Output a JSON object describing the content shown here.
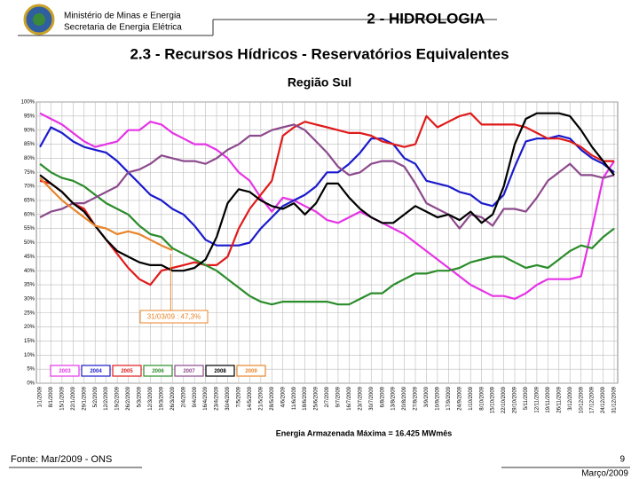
{
  "header": {
    "ministry": "Ministério de Minas e Energia",
    "secretariat": "Secretaria de Energia Elétrica",
    "section": "2 - HIDROLOGIA"
  },
  "subtitle": "2.3 - Recursos Hídricos - Reservatórios Equivalentes",
  "chart_data": {
    "type": "line",
    "title": "Região Sul",
    "x_label": "Energia Armazenada Máxima = 16.425 MWmês",
    "annotation": "31/03/09 : 47,3%",
    "categories": [
      "1/1/2009",
      "8/1/2009",
      "15/1/2009",
      "22/1/2009",
      "29/1/2009",
      "5/2/2009",
      "12/2/2009",
      "19/2/2009",
      "26/2/2009",
      "5/3/2009",
      "12/3/2009",
      "19/3/2009",
      "26/3/2009",
      "2/4/2009",
      "9/4/2009",
      "16/4/2009",
      "23/4/2009",
      "30/4/2009",
      "7/5/2009",
      "14/5/2009",
      "21/5/2009",
      "28/5/2009",
      "4/6/2009",
      "11/6/2009",
      "18/6/2009",
      "25/6/2009",
      "2/7/2009",
      "9/7/2009",
      "16/7/2009",
      "23/7/2009",
      "30/7/2009",
      "6/8/2009",
      "13/8/2009",
      "20/8/2009",
      "27/8/2009",
      "3/9/2009",
      "10/9/2009",
      "17/9/2009",
      "24/9/2009",
      "1/10/2009",
      "8/10/2009",
      "15/10/2009",
      "22/10/2009",
      "29/10/2009",
      "5/11/2009",
      "12/11/2009",
      "19/11/2009",
      "26/11/2009",
      "3/12/2009",
      "10/12/2009",
      "17/12/2009",
      "24/12/2009",
      "31/12/2009"
    ],
    "series": [
      {
        "name": "2003",
        "color": "#e633e6",
        "values": [
          96,
          94,
          92,
          89,
          86,
          84,
          85,
          86,
          90,
          90,
          93,
          92,
          89,
          87,
          85,
          85,
          83,
          80,
          75,
          72,
          66,
          61,
          66,
          65,
          63,
          61,
          58,
          57,
          59,
          61,
          59,
          57,
          55,
          53,
          50,
          47,
          44,
          41,
          38,
          35,
          33,
          31,
          31,
          30,
          32,
          35,
          37,
          37,
          37,
          38,
          55,
          73,
          79
        ]
      },
      {
        "name": "2004",
        "color": "#1a1acc",
        "values": [
          84,
          91,
          89,
          86,
          84,
          83,
          82,
          79,
          75,
          71,
          67,
          65,
          62,
          60,
          56,
          51,
          49,
          49,
          49,
          50,
          55,
          59,
          63,
          65,
          67,
          70,
          75,
          75,
          78,
          82,
          87,
          87,
          85,
          80,
          78,
          72,
          71,
          70,
          68,
          67,
          64,
          63,
          67,
          77,
          86,
          87,
          87,
          88,
          87,
          83,
          80,
          78,
          75
        ]
      },
      {
        "name": "2005",
        "color": "#e01a1a",
        "values": [
          72,
          71,
          68,
          64,
          62,
          56,
          51,
          46,
          41,
          37,
          35,
          40,
          41,
          42,
          43,
          42,
          42,
          45,
          55,
          62,
          67,
          72,
          88,
          91,
          93,
          92,
          91,
          90,
          89,
          89,
          88,
          86,
          85,
          84,
          85,
          95,
          91,
          93,
          95,
          96,
          92,
          92,
          92,
          92,
          91,
          89,
          87,
          87,
          86,
          84,
          81,
          79,
          79
        ]
      },
      {
        "name": "2006",
        "color": "#2a8c2a",
        "values": [
          78,
          75,
          73,
          72,
          70,
          67,
          64,
          62,
          60,
          56,
          53,
          52,
          48,
          46,
          44,
          42,
          40,
          37,
          34,
          31,
          29,
          28,
          29,
          29,
          29,
          29,
          29,
          28,
          28,
          30,
          32,
          32,
          35,
          37,
          39,
          39,
          40,
          40,
          41,
          43,
          44,
          45,
          45,
          43,
          41,
          42,
          41,
          44,
          47,
          49,
          48,
          52,
          55
        ]
      },
      {
        "name": "2007",
        "color": "#8c4a8c",
        "values": [
          59,
          61,
          62,
          64,
          64,
          66,
          68,
          70,
          75,
          76,
          78,
          81,
          80,
          79,
          79,
          78,
          80,
          83,
          85,
          88,
          88,
          90,
          91,
          92,
          90,
          86,
          82,
          77,
          74,
          75,
          78,
          79,
          79,
          77,
          71,
          64,
          62,
          60,
          55,
          60,
          59,
          56,
          62,
          62,
          61,
          66,
          72,
          75,
          78,
          74,
          74,
          73,
          74
        ]
      },
      {
        "name": "2008",
        "color": "#000000",
        "values": [
          74,
          71,
          68,
          64,
          61,
          56,
          51,
          47,
          45,
          43,
          42,
          42,
          40,
          40,
          41,
          44,
          52,
          64,
          69,
          68,
          65,
          63,
          62,
          64,
          60,
          64,
          71,
          71,
          66,
          62,
          59,
          57,
          57,
          60,
          63,
          61,
          59,
          60,
          58,
          61,
          57,
          60,
          70,
          85,
          94,
          96,
          96,
          96,
          95,
          90,
          84,
          79,
          74
        ]
      },
      {
        "name": "2009",
        "color": "#e8862a",
        "values": [
          73,
          69,
          65,
          62,
          59,
          56,
          55,
          53,
          54,
          53,
          51,
          49,
          47.3,
          null,
          null,
          null,
          null,
          null,
          null,
          null,
          null,
          null,
          null,
          null,
          null,
          null,
          null,
          null,
          null,
          null,
          null,
          null,
          null,
          null,
          null,
          null,
          null,
          null,
          null,
          null,
          null,
          null,
          null,
          null,
          null,
          null,
          null,
          null,
          null,
          null,
          null,
          null,
          null
        ]
      }
    ],
    "ylim": [
      0,
      100
    ],
    "yticks": [
      {
        "value": 0,
        "label": "0%"
      },
      {
        "value": 5,
        "label": "5%"
      },
      {
        "value": 10,
        "label": "10%"
      },
      {
        "value": 15,
        "label": "15%"
      },
      {
        "value": 20,
        "label": "20%"
      },
      {
        "value": 25,
        "label": "25%"
      },
      {
        "value": 30,
        "label": "30%"
      },
      {
        "value": 35,
        "label": "35%"
      },
      {
        "value": 40,
        "label": "40%"
      },
      {
        "value": 45,
        "label": "45%"
      },
      {
        "value": 50,
        "label": "50%"
      },
      {
        "value": 55,
        "label": "55%"
      },
      {
        "value": 60,
        "label": "60%"
      },
      {
        "value": 65,
        "label": "65%"
      },
      {
        "value": 70,
        "label": "70%"
      },
      {
        "value": 75,
        "label": "75%"
      },
      {
        "value": 80,
        "label": "80%"
      },
      {
        "value": 85,
        "label": "85%"
      },
      {
        "value": 90,
        "label": "90%"
      },
      {
        "value": 95,
        "label": "95%"
      },
      {
        "value": 100,
        "label": "100%"
      }
    ],
    "grid": true
  },
  "footer": {
    "source": "Fonte: Mar/2009 - ONS",
    "page": "9",
    "date": "Março/2009"
  }
}
